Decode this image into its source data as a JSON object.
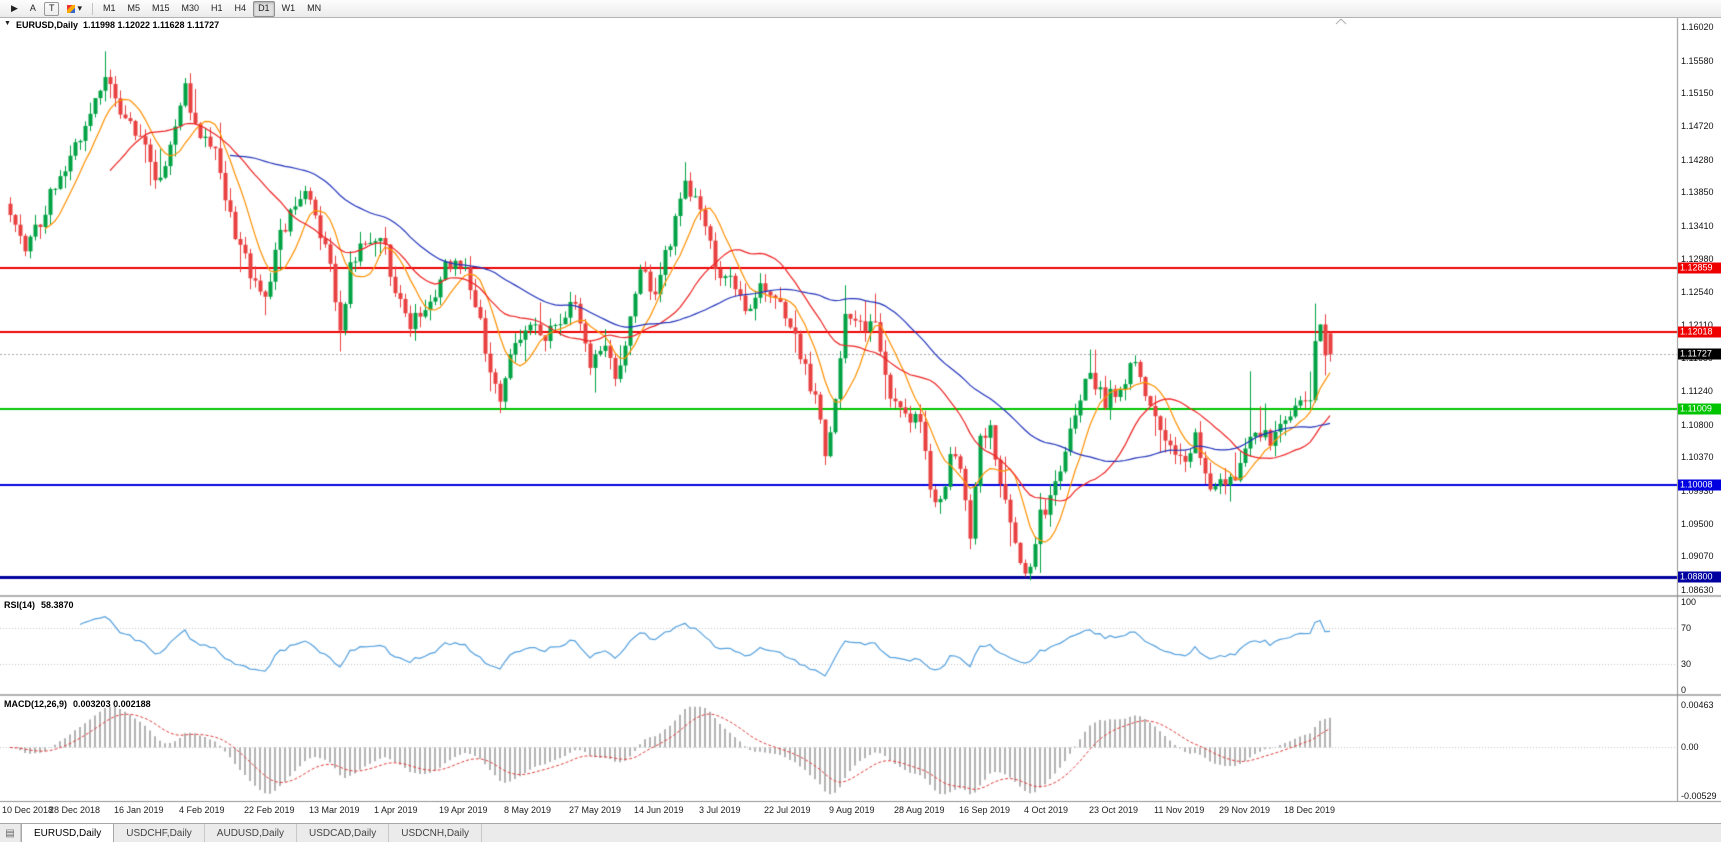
{
  "toolbar": {
    "tools": [
      {
        "name": "cursor-tool-icon",
        "label": "▶"
      },
      {
        "name": "arrow-label-tool",
        "label": "A"
      },
      {
        "name": "text-tool",
        "label": "T"
      },
      {
        "name": "colors-tool",
        "label": "▾"
      }
    ],
    "timeframes": [
      {
        "label": "M1"
      },
      {
        "label": "M5"
      },
      {
        "label": "M15"
      },
      {
        "label": "M30"
      },
      {
        "label": "H1"
      },
      {
        "label": "H4"
      },
      {
        "label": "D1",
        "active": true
      },
      {
        "label": "W1"
      },
      {
        "label": "MN"
      }
    ]
  },
  "chart": {
    "collapse_icon": "▼",
    "symbol": "EURUSD,Daily",
    "quote": "1.11998 1.12022 1.11628 1.11727",
    "current_price": "1.11727",
    "price_axis": [
      "1.16020",
      "1.15580",
      "1.15150",
      "1.14720",
      "1.14280",
      "1.13850",
      "1.13410",
      "1.12980",
      "1.12540",
      "1.12110",
      "1.11680",
      "1.11240",
      "1.10800",
      "1.10370",
      "1.09930",
      "1.09500",
      "1.09070",
      "1.08630"
    ],
    "levels": [
      {
        "price": 1.12859,
        "label": "1.12859",
        "color": "#ee0000",
        "width": 2
      },
      {
        "price": 1.12018,
        "label": "1.12018",
        "color": "#ee0000",
        "width": 2
      },
      {
        "price": 1.11009,
        "label": "1.11009",
        "color": "#00c400",
        "width": 2
      },
      {
        "price": 1.10008,
        "label": "1.10008",
        "color": "#0000e0",
        "width": 2
      },
      {
        "price": 1.088,
        "label": "1.08800",
        "color": "#0000a0",
        "width": 3
      }
    ]
  },
  "rsi": {
    "title": "RSI(14)",
    "value": "58.3870",
    "axis": [
      "100",
      "70",
      "30",
      "0"
    ],
    "levels": [
      70,
      30
    ],
    "color": "#55a0dd"
  },
  "macd": {
    "title": "MACD(12,26,9)",
    "values": "0.003203 0.002188",
    "axis": [
      "0.00463",
      "0.00",
      "-0.00529"
    ],
    "histogram_color": "#b2b2b2",
    "signal_color": "#e04040"
  },
  "tabs": [
    {
      "label": "EURUSD,Daily",
      "active": true
    },
    {
      "label": "USDCHF,Daily"
    },
    {
      "label": "AUDUSD,Daily"
    },
    {
      "label": "USDCAD,Daily"
    },
    {
      "label": "USDCNH,Daily"
    }
  ],
  "chart_data": {
    "type": "candlestick",
    "symbol": "EURUSD",
    "timeframe": "Daily",
    "ohlc_current": {
      "open": 1.11998,
      "high": 1.12022,
      "low": 1.11628,
      "close": 1.11727
    },
    "y_range": [
      1.0863,
      1.1602
    ],
    "candle_count": 265,
    "date_label_interval": 13,
    "dates": [
      "10 Dec 2018",
      "28 Dec 2018",
      "16 Jan 2019",
      "4 Feb 2019",
      "22 Feb 2019",
      "13 Mar 2019",
      "1 Apr 2019",
      "19 Apr 2019",
      "8 May 2019",
      "27 May 2019",
      "14 Jun 2019",
      "3 Jul 2019",
      "22 Jul 2019",
      "9 Aug 2019",
      "28 Aug 2019",
      "16 Sep 2019",
      "4 Oct 2019",
      "23 Oct 2019",
      "11 Nov 2019",
      "29 Nov 2019",
      "18 Dec 2019"
    ],
    "horizontal_levels": [
      1.12859,
      1.12018,
      1.11009,
      1.10008,
      1.088
    ],
    "price_anchors": [
      [
        0,
        1.1355
      ],
      [
        3,
        1.1315
      ],
      [
        6,
        1.1345
      ],
      [
        9,
        1.14
      ],
      [
        13,
        1.1445
      ],
      [
        16,
        1.149
      ],
      [
        19,
        1.1545
      ],
      [
        21,
        1.1505
      ],
      [
        24,
        1.1475
      ],
      [
        27,
        1.144
      ],
      [
        30,
        1.1395
      ],
      [
        33,
        1.1475
      ],
      [
        35,
        1.1525
      ],
      [
        37,
        1.147
      ],
      [
        41,
        1.144
      ],
      [
        44,
        1.135
      ],
      [
        48,
        1.128
      ],
      [
        51,
        1.125
      ],
      [
        54,
        1.133
      ],
      [
        57,
        1.1365
      ],
      [
        59,
        1.1395
      ],
      [
        62,
        1.132
      ],
      [
        64,
        1.13
      ],
      [
        66,
        1.1195
      ],
      [
        68,
        1.1295
      ],
      [
        71,
        1.1325
      ],
      [
        74,
        1.1335
      ],
      [
        77,
        1.1255
      ],
      [
        80,
        1.1215
      ],
      [
        83,
        1.123
      ],
      [
        87,
        1.1285
      ],
      [
        90,
        1.1295
      ],
      [
        93,
        1.124
      ],
      [
        96,
        1.1155
      ],
      [
        98,
        1.112
      ],
      [
        101,
        1.1185
      ],
      [
        104,
        1.1215
      ],
      [
        107,
        1.12
      ],
      [
        110,
        1.122
      ],
      [
        113,
        1.1245
      ],
      [
        116,
        1.116
      ],
      [
        119,
        1.119
      ],
      [
        121,
        1.1135
      ],
      [
        123,
        1.118
      ],
      [
        126,
        1.1285
      ],
      [
        129,
        1.1255
      ],
      [
        132,
        1.132
      ],
      [
        135,
        1.139
      ],
      [
        138,
        1.137
      ],
      [
        141,
        1.1285
      ],
      [
        144,
        1.128
      ],
      [
        147,
        1.1225
      ],
      [
        150,
        1.127
      ],
      [
        153,
        1.125
      ],
      [
        156,
        1.1215
      ],
      [
        159,
        1.115
      ],
      [
        161,
        1.1115
      ],
      [
        163,
        1.1045
      ],
      [
        165,
        1.1115
      ],
      [
        167,
        1.1235
      ],
      [
        170,
        1.1205
      ],
      [
        173,
        1.1215
      ],
      [
        176,
        1.1105
      ],
      [
        179,
        1.109
      ],
      [
        182,
        1.108
      ],
      [
        184,
        1.0995
      ],
      [
        186,
        1.0975
      ],
      [
        188,
        1.1035
      ],
      [
        190,
        1.1025
      ],
      [
        192,
        1.0935
      ],
      [
        194,
        1.1065
      ],
      [
        196,
        1.107
      ],
      [
        198,
        1.1005
      ],
      [
        200,
        1.0945
      ],
      [
        202,
        1.0905
      ],
      [
        204,
        1.0885
      ],
      [
        206,
        1.096
      ],
      [
        208,
        1.0985
      ],
      [
        211,
        1.104
      ],
      [
        214,
        1.112
      ],
      [
        216,
        1.115
      ],
      [
        219,
        1.111
      ],
      [
        222,
        1.113
      ],
      [
        225,
        1.116
      ],
      [
        228,
        1.11
      ],
      [
        231,
        1.107
      ],
      [
        234,
        1.103
      ],
      [
        237,
        1.106
      ],
      [
        240,
        1.1005
      ],
      [
        243,
        1.0995
      ],
      [
        246,
        1.102
      ],
      [
        249,
        1.108
      ],
      [
        252,
        1.106
      ],
      [
        255,
        1.109
      ],
      [
        258,
        1.1112
      ],
      [
        260,
        1.112
      ],
      [
        261,
        1.12
      ],
      [
        262,
        1.121
      ],
      [
        263,
        1.116
      ],
      [
        264,
        1.1173
      ]
    ],
    "wick_extremes": [
      [
        19,
        "h",
        1.157
      ],
      [
        35,
        "h",
        1.1535
      ],
      [
        66,
        "l",
        1.1176
      ],
      [
        98,
        "l",
        1.111
      ],
      [
        135,
        "h",
        1.1402
      ],
      [
        163,
        "l",
        1.1027
      ],
      [
        186,
        "l",
        1.0963
      ],
      [
        192,
        "l",
        1.0926
      ],
      [
        204,
        "l",
        1.0879
      ],
      [
        248,
        "h",
        1.115
      ],
      [
        261,
        "h",
        1.1239
      ]
    ],
    "colors": {
      "up": "#00a244",
      "down": "#e84040"
    },
    "indicators": {
      "rsi": {
        "period": 14,
        "current": 58.387
      },
      "macd": {
        "fast": 12,
        "slow": 26,
        "signal": 9,
        "current": [
          0.003203,
          0.002188
        ]
      },
      "moving_averages": [
        {
          "period": 8,
          "color": "#ff9000"
        },
        {
          "period": 21,
          "color": "#ee2222"
        },
        {
          "period": 45,
          "color": "#2233bb"
        }
      ]
    }
  }
}
